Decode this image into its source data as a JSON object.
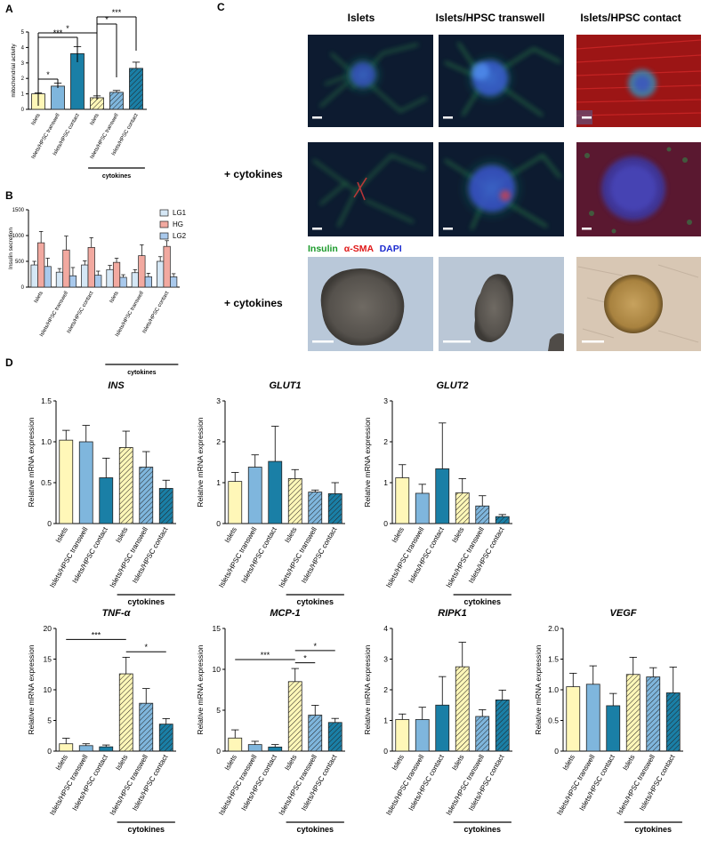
{
  "figure": {
    "panel_letters": [
      "A",
      "B",
      "C",
      "D"
    ],
    "colors": {
      "islets": "#fff7b8",
      "transwell": "#7fb6dd",
      "contact": "#1a7fa6",
      "hg": "#f2a9a0",
      "lg1": "#d5e7f5",
      "lg2": "#a9c9ec",
      "bar_stroke": "#222222",
      "fluor_bg": "#0d1b30",
      "brightfield_bg": "#b9c8d9"
    }
  },
  "chart_data": [
    {
      "id": "A",
      "type": "bar",
      "panel": "A",
      "ylabel": "mitochondrial activity",
      "ylim": [
        0,
        5
      ],
      "yticks": [
        0,
        1,
        2,
        3,
        4,
        5
      ],
      "categories": [
        "Islets",
        "Islets/HPSC transwell",
        "Islets/HPSC contact",
        "Islets",
        "Islets/HPSC transwell",
        "Islets/HPSC contact"
      ],
      "values": [
        1.0,
        1.5,
        3.6,
        0.75,
        1.1,
        2.65
      ],
      "errors": [
        0.06,
        0.2,
        0.45,
        0.12,
        0.12,
        0.4
      ],
      "styles": [
        "islets",
        "transwell",
        "contact",
        "islets",
        "transwell",
        "contact"
      ],
      "hatched": [
        false,
        false,
        false,
        true,
        true,
        true
      ],
      "group_label": "cytokines",
      "group_span": [
        3,
        5
      ],
      "significance": [
        {
          "from": 0,
          "to": 1,
          "label": "*"
        },
        {
          "from": 0,
          "to": 2,
          "label": "***"
        },
        {
          "from": 0,
          "to": 3,
          "label": "*"
        },
        {
          "from": 3,
          "to": 4,
          "label": "*"
        },
        {
          "from": 3,
          "to": 5,
          "label": "***"
        }
      ]
    },
    {
      "id": "B",
      "type": "bar",
      "panel": "B",
      "ylabel": "Insulin secretion",
      "ylim": [
        0,
        1500
      ],
      "yticks": [
        0,
        500,
        1000,
        1500
      ],
      "categories": [
        "Islets",
        "Islets/HPSC transwell",
        "Islets/HPSC contact",
        "Islets",
        "Islets/HPSC transwell",
        "Islets/HPSC contact"
      ],
      "series": [
        {
          "name": "LG1",
          "values": [
            430,
            290,
            430,
            340,
            280,
            500
          ],
          "errors": [
            70,
            70,
            80,
            80,
            60,
            90
          ],
          "style": "lg1"
        },
        {
          "name": "HG",
          "values": [
            860,
            720,
            770,
            480,
            610,
            790
          ],
          "errors": [
            220,
            270,
            190,
            80,
            210,
            110
          ],
          "style": "hg"
        },
        {
          "name": "LG2",
          "values": [
            400,
            220,
            230,
            190,
            200,
            200
          ],
          "errors": [
            160,
            160,
            80,
            50,
            70,
            60
          ],
          "style": "lg2"
        }
      ],
      "legend_position": "top-right",
      "group_label": "cytokines",
      "group_span": [
        3,
        5
      ]
    },
    {
      "id": "INS",
      "type": "bar",
      "panel": "D",
      "title": "INS",
      "ylabel": "Relative mRNA expression",
      "ylim": [
        0,
        1.5
      ],
      "yticks": [
        0,
        0.5,
        1.0,
        1.5
      ],
      "ytick_labels": [
        "0",
        "0.5",
        "1.0",
        "1.5"
      ],
      "categories": [
        "Islets",
        "Islets/HPSC transwell",
        "Islets/HPSC contact",
        "Islets",
        "Islets/HPSC transwell",
        "Islets/HPSC contact"
      ],
      "values": [
        1.02,
        1.0,
        0.56,
        0.93,
        0.69,
        0.43
      ],
      "errors": [
        0.12,
        0.2,
        0.24,
        0.2,
        0.19,
        0.1
      ],
      "styles": [
        "islets",
        "transwell",
        "contact",
        "islets",
        "transwell",
        "contact"
      ],
      "hatched": [
        false,
        false,
        false,
        true,
        true,
        true
      ],
      "group_label": "cytokines",
      "group_span": [
        3,
        5
      ],
      "significance": []
    },
    {
      "id": "GLUT1",
      "type": "bar",
      "panel": "D",
      "title": "GLUT1",
      "ylabel": "Relative mRNA expression",
      "ylim": [
        0,
        3
      ],
      "yticks": [
        0,
        1,
        2,
        3
      ],
      "categories": [
        "Islets",
        "Islets/HPSC transwell",
        "Islets/HPSC contact",
        "Islets",
        "Islets/HPSC transwell",
        "Islets/HPSC contact"
      ],
      "values": [
        1.03,
        1.38,
        1.52,
        1.1,
        0.77,
        0.73
      ],
      "errors": [
        0.22,
        0.3,
        0.86,
        0.22,
        0.05,
        0.27
      ],
      "styles": [
        "islets",
        "transwell",
        "contact",
        "islets",
        "transwell",
        "contact"
      ],
      "hatched": [
        false,
        false,
        false,
        true,
        true,
        true
      ],
      "group_label": "cytokines",
      "group_span": [
        3,
        5
      ],
      "significance": []
    },
    {
      "id": "GLUT2",
      "type": "bar",
      "panel": "D",
      "title": "GLUT2",
      "ylabel": "Relative mRNA expression",
      "ylim": [
        0,
        3
      ],
      "yticks": [
        0,
        1,
        2,
        3
      ],
      "categories": [
        "Islets",
        "Islets/HPSC transwell",
        "Islets/HPSC contact",
        "Islets",
        "Islets/HPSC transwell",
        "Islets/HPSC contact"
      ],
      "values": [
        1.12,
        0.74,
        1.34,
        0.75,
        0.43,
        0.17
      ],
      "errors": [
        0.32,
        0.22,
        1.12,
        0.35,
        0.25,
        0.05
      ],
      "styles": [
        "islets",
        "transwell",
        "contact",
        "islets",
        "transwell",
        "contact"
      ],
      "hatched": [
        false,
        false,
        false,
        true,
        true,
        true
      ],
      "group_label": "cytokines",
      "group_span": [
        3,
        5
      ],
      "significance": []
    },
    {
      "id": "TNF",
      "type": "bar",
      "panel": "D",
      "title": "TNF-α",
      "ylabel": "Relative mRNA expression",
      "ylim": [
        0,
        20
      ],
      "yticks": [
        0,
        5,
        10,
        15,
        20
      ],
      "categories": [
        "Islets",
        "Islets/HPSC transwell",
        "Islets/HPSC contact",
        "Islets",
        "Islets/HPSC transwell",
        "Islets/HPSC contact"
      ],
      "values": [
        1.2,
        0.9,
        0.7,
        12.6,
        7.8,
        4.4
      ],
      "errors": [
        0.9,
        0.3,
        0.3,
        2.7,
        2.4,
        0.9
      ],
      "styles": [
        "islets",
        "transwell",
        "contact",
        "islets",
        "transwell",
        "contact"
      ],
      "hatched": [
        false,
        false,
        false,
        true,
        true,
        true
      ],
      "group_label": "cytokines",
      "group_span": [
        3,
        5
      ],
      "significance": [
        {
          "from": 0,
          "to": 3,
          "label": "***",
          "y": 18.2
        },
        {
          "from": 3,
          "to": 5,
          "label": "*",
          "y": 16.2
        }
      ]
    },
    {
      "id": "MCP1",
      "type": "bar",
      "panel": "D",
      "title": "MCP-1",
      "ylabel": "Relative mRNA expression",
      "ylim": [
        0,
        15
      ],
      "yticks": [
        0,
        5,
        10,
        15
      ],
      "categories": [
        "Islets",
        "Islets/HPSC transwell",
        "Islets/HPSC contact",
        "Islets",
        "Islets/HPSC transwell",
        "Islets/HPSC contact"
      ],
      "values": [
        1.6,
        0.8,
        0.5,
        8.5,
        4.4,
        3.5
      ],
      "errors": [
        1.0,
        0.4,
        0.3,
        1.6,
        1.2,
        0.5
      ],
      "styles": [
        "islets",
        "transwell",
        "contact",
        "islets",
        "transwell",
        "contact"
      ],
      "hatched": [
        false,
        false,
        false,
        true,
        true,
        true
      ],
      "group_label": "cytokines",
      "group_span": [
        3,
        5
      ],
      "significance": [
        {
          "from": 0,
          "to": 3,
          "label": "***",
          "y": 11.2
        },
        {
          "from": 3,
          "to": 4,
          "label": "*",
          "y": 10.8
        },
        {
          "from": 3,
          "to": 5,
          "label": "*",
          "y": 12.3
        }
      ]
    },
    {
      "id": "RIPK1",
      "type": "bar",
      "panel": "D",
      "title": "RIPK1",
      "ylabel": "Relative mRNA expression",
      "ylim": [
        0,
        4
      ],
      "yticks": [
        0,
        1,
        2,
        3,
        4
      ],
      "categories": [
        "Islets",
        "Islets/HPSC transwell",
        "Islets/HPSC contact",
        "Islets",
        "Islets/HPSC transwell",
        "Islets/HPSC contact"
      ],
      "values": [
        1.03,
        1.03,
        1.5,
        2.75,
        1.13,
        1.67
      ],
      "errors": [
        0.18,
        0.4,
        0.93,
        0.8,
        0.22,
        0.32
      ],
      "styles": [
        "islets",
        "transwell",
        "contact",
        "islets",
        "transwell",
        "contact"
      ],
      "hatched": [
        false,
        false,
        false,
        true,
        true,
        true
      ],
      "group_label": "cytokines",
      "group_span": [
        3,
        5
      ],
      "significance": []
    },
    {
      "id": "VEGF",
      "type": "bar",
      "panel": "D",
      "title": "VEGF",
      "ylabel": "Relative mRNA expression",
      "ylim": [
        0,
        2
      ],
      "yticks": [
        0,
        0.5,
        1.0,
        1.5,
        2.0
      ],
      "ytick_labels": [
        "0",
        "0.5",
        "1.0",
        "1.5",
        "2.0"
      ],
      "categories": [
        "Islets",
        "Islets/HPSC transwell",
        "Islets/HPSC contact",
        "Islets",
        "Islets/HPSC transwell",
        "Islets/HPSC contact"
      ],
      "values": [
        1.05,
        1.09,
        0.74,
        1.25,
        1.21,
        0.95
      ],
      "errors": [
        0.22,
        0.3,
        0.2,
        0.28,
        0.15,
        0.42
      ],
      "styles": [
        "islets",
        "transwell",
        "contact",
        "islets",
        "transwell",
        "contact"
      ],
      "hatched": [
        false,
        false,
        false,
        true,
        true,
        true
      ],
      "group_label": "cytokines",
      "group_span": [
        3,
        5
      ],
      "significance": []
    }
  ],
  "micrographs": {
    "column_headers": [
      "Islets",
      "Islets/HPSC transwell",
      "Islets/HPSC contact"
    ],
    "row_labels": [
      "",
      "+ cytokines",
      "+ cytokines"
    ],
    "stain_legend": [
      {
        "text": "Insulin",
        "color": "#1a9a2a"
      },
      {
        "text": "α-SMA",
        "color": "#e01818"
      },
      {
        "text": "DAPI",
        "color": "#1a2ad0"
      }
    ]
  }
}
